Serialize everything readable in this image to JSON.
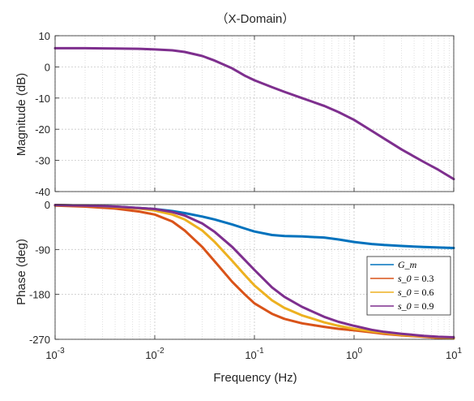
{
  "chart_data": [
    {
      "type": "line",
      "title": "（X-Domain）",
      "ylabel": "Magnitude (dB)",
      "xlabel": "",
      "xscale": "log",
      "xlim": [
        0.001,
        10
      ],
      "ylim": [
        -40,
        10
      ],
      "yticks": [
        "10",
        "0",
        "-10",
        "-20",
        "-30",
        "-40"
      ],
      "grid": true,
      "series": [
        {
          "color": "#7E2F8E",
          "x": [
            0.001,
            0.002,
            0.004,
            0.007,
            0.01,
            0.015,
            0.02,
            0.03,
            0.04,
            0.06,
            0.08,
            0.1,
            0.15,
            0.2,
            0.3,
            0.5,
            0.7,
            1.0,
            1.5,
            2,
            3,
            5,
            7,
            10
          ],
          "y": [
            6.0,
            6.0,
            5.9,
            5.8,
            5.6,
            5.3,
            4.8,
            3.5,
            2.0,
            -0.5,
            -2.8,
            -4.3,
            -6.5,
            -8.0,
            -10.0,
            -12.5,
            -14.5,
            -17.0,
            -20.5,
            -23.0,
            -26.5,
            -30.5,
            -33.0,
            -36.0
          ]
        }
      ]
    },
    {
      "type": "line",
      "title": "",
      "ylabel": "Phase (deg)",
      "xlabel": "Frequency  (Hz)",
      "xscale": "log",
      "xlim": [
        0.001,
        10
      ],
      "ylim": [
        -270,
        0
      ],
      "yticks": [
        "0",
        "-90",
        "-180",
        "-270"
      ],
      "xticks": [
        {
          "base": "10",
          "exp": "-3"
        },
        {
          "base": "10",
          "exp": "-2"
        },
        {
          "base": "10",
          "exp": "-1"
        },
        {
          "base": "10",
          "exp": "0"
        },
        {
          "base": "10",
          "exp": "1"
        }
      ],
      "grid": true,
      "legend": "bottom-right",
      "series": [
        {
          "name": "G_m",
          "color": "#0072BD",
          "x": [
            0.001,
            0.002,
            0.004,
            0.007,
            0.01,
            0.015,
            0.02,
            0.03,
            0.04,
            0.06,
            0.08,
            0.1,
            0.15,
            0.2,
            0.3,
            0.5,
            0.7,
            1.0,
            1.5,
            2,
            3,
            5,
            7,
            10
          ],
          "y": [
            -1,
            -2,
            -4,
            -7,
            -9,
            -13,
            -17,
            -24,
            -30,
            -40,
            -48,
            -54,
            -61,
            -63,
            -64,
            -66,
            -70,
            -75,
            -79,
            -81,
            -83,
            -85,
            -86,
            -87
          ]
        },
        {
          "name": "s_0 = 0.3",
          "color": "#D95319",
          "x": [
            0.001,
            0.002,
            0.004,
            0.007,
            0.01,
            0.015,
            0.02,
            0.03,
            0.04,
            0.06,
            0.08,
            0.1,
            0.15,
            0.2,
            0.3,
            0.5,
            0.7,
            1.0,
            1.5,
            2,
            3,
            5,
            7,
            10
          ],
          "y": [
            -2,
            -4,
            -8,
            -14,
            -20,
            -34,
            -52,
            -85,
            -114,
            -155,
            -180,
            -198,
            -219,
            -229,
            -238,
            -245,
            -249,
            -252,
            -256,
            -259,
            -262,
            -265,
            -267,
            -268
          ]
        },
        {
          "name": "s_0 = 0.6",
          "color": "#EDB120",
          "x": [
            0.001,
            0.002,
            0.004,
            0.007,
            0.01,
            0.015,
            0.02,
            0.03,
            0.04,
            0.06,
            0.08,
            0.1,
            0.15,
            0.2,
            0.3,
            0.5,
            0.7,
            1.0,
            1.5,
            2,
            3,
            5,
            7,
            10
          ],
          "y": [
            -1,
            -2,
            -5,
            -8,
            -12,
            -20,
            -30,
            -52,
            -75,
            -113,
            -141,
            -162,
            -192,
            -207,
            -222,
            -236,
            -243,
            -249,
            -254,
            -257,
            -261,
            -264,
            -266,
            -267
          ]
        },
        {
          "name": "s_0 = 0.9",
          "color": "#7E2F8E",
          "x": [
            0.001,
            0.002,
            0.004,
            0.007,
            0.01,
            0.015,
            0.02,
            0.03,
            0.04,
            0.06,
            0.08,
            0.1,
            0.15,
            0.2,
            0.3,
            0.5,
            0.7,
            1.0,
            1.5,
            2,
            3,
            5,
            7,
            10
          ],
          "y": [
            -1,
            -2,
            -4,
            -7,
            -9,
            -15,
            -22,
            -38,
            -55,
            -85,
            -111,
            -131,
            -166,
            -185,
            -205,
            -225,
            -235,
            -243,
            -251,
            -255,
            -259,
            -263,
            -265,
            -266
          ]
        }
      ]
    }
  ],
  "legend_math": [
    {
      "main": "G",
      "sep": "_",
      "sub": "m",
      "rest": ""
    },
    {
      "main": "s",
      "sep": "_",
      "sub": "0",
      "rest": " = 0.3"
    },
    {
      "main": "s",
      "sep": "_",
      "sub": "0",
      "rest": " = 0.6"
    },
    {
      "main": "s",
      "sep": "_",
      "sub": "0",
      "rest": " = 0.9"
    }
  ]
}
